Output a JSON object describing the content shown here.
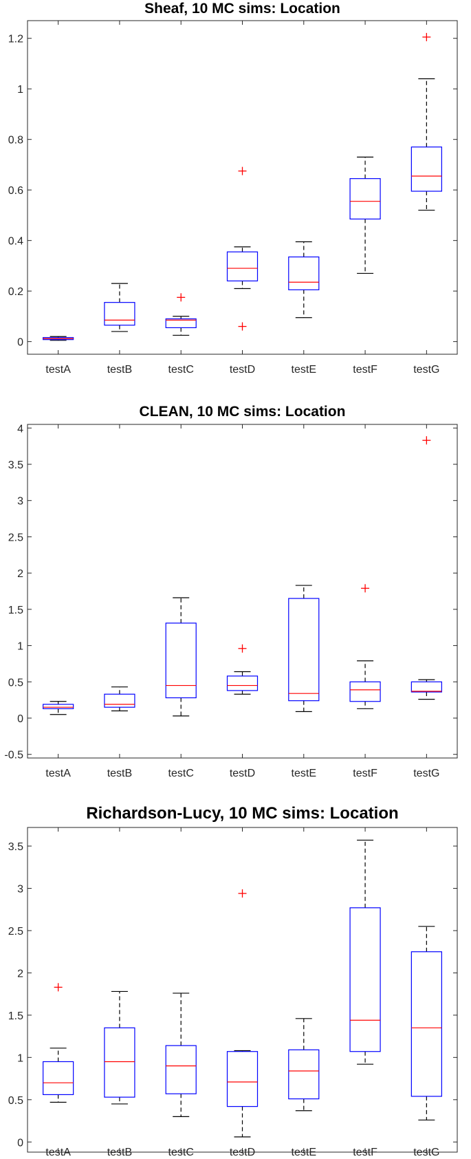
{
  "chart_data": [
    {
      "type": "box",
      "title": "Sheaf, 10 MC sims: Location",
      "categories": [
        "testA",
        "testB",
        "testC",
        "testD",
        "testE",
        "testF",
        "testG"
      ],
      "ylim": [
        -0.05,
        1.27
      ],
      "yticks": [
        0,
        0.2,
        0.4,
        0.6,
        0.8,
        1,
        1.2
      ],
      "ytick_labels": [
        "0",
        "0.2",
        "0.4",
        "0.6",
        "0.8",
        "1",
        "1.2"
      ],
      "boxes": [
        {
          "min": 0.005,
          "q1": 0.008,
          "median": 0.012,
          "q3": 0.016,
          "max": 0.02,
          "outliers": []
        },
        {
          "min": 0.04,
          "q1": 0.065,
          "median": 0.085,
          "q3": 0.155,
          "max": 0.23,
          "outliers": []
        },
        {
          "min": 0.025,
          "q1": 0.055,
          "median": 0.085,
          "q3": 0.09,
          "max": 0.1,
          "outliers": [
            0.175
          ]
        },
        {
          "min": 0.21,
          "q1": 0.24,
          "median": 0.29,
          "q3": 0.355,
          "max": 0.375,
          "outliers": [
            0.675,
            0.06
          ]
        },
        {
          "min": 0.095,
          "q1": 0.205,
          "median": 0.235,
          "q3": 0.335,
          "max": 0.395,
          "outliers": []
        },
        {
          "min": 0.27,
          "q1": 0.485,
          "median": 0.555,
          "q3": 0.645,
          "max": 0.73,
          "outliers": []
        },
        {
          "min": 0.52,
          "q1": 0.595,
          "median": 0.655,
          "q3": 0.77,
          "max": 1.04,
          "outliers": [
            1.205
          ]
        }
      ]
    },
    {
      "type": "box",
      "title": "CLEAN, 10 MC sims: Location",
      "categories": [
        "testA",
        "testB",
        "testC",
        "testD",
        "testE",
        "testF",
        "testG"
      ],
      "ylim": [
        -0.55,
        4.05
      ],
      "yticks": [
        -0.5,
        0,
        0.5,
        1,
        1.5,
        2,
        2.5,
        3,
        3.5,
        4
      ],
      "ytick_labels": [
        "-0.5",
        "0",
        "0.5",
        "1",
        "1.5",
        "2",
        "2.5",
        "3",
        "3.5",
        "4"
      ],
      "boxes": [
        {
          "min": 0.05,
          "q1": 0.13,
          "median": 0.15,
          "q3": 0.19,
          "max": 0.23,
          "outliers": []
        },
        {
          "min": 0.1,
          "q1": 0.15,
          "median": 0.19,
          "q3": 0.33,
          "max": 0.43,
          "outliers": []
        },
        {
          "min": 0.03,
          "q1": 0.28,
          "median": 0.45,
          "q3": 1.31,
          "max": 1.66,
          "outliers": []
        },
        {
          "min": 0.33,
          "q1": 0.38,
          "median": 0.45,
          "q3": 0.58,
          "max": 0.64,
          "outliers": [
            0.96
          ]
        },
        {
          "min": 0.09,
          "q1": 0.24,
          "median": 0.34,
          "q3": 1.65,
          "max": 1.83,
          "outliers": []
        },
        {
          "min": 0.13,
          "q1": 0.23,
          "median": 0.39,
          "q3": 0.5,
          "max": 0.79,
          "outliers": [
            1.79
          ]
        },
        {
          "min": 0.26,
          "q1": 0.36,
          "median": 0.37,
          "q3": 0.5,
          "max": 0.53,
          "outliers": [
            3.83
          ]
        }
      ]
    },
    {
      "type": "box",
      "title": "Richardson-Lucy, 10 MC sims: Location",
      "categories": [
        "testA",
        "testB",
        "testC",
        "testD",
        "testE",
        "testF",
        "testG"
      ],
      "ylim": [
        -0.12,
        3.72
      ],
      "yticks": [
        0,
        0.5,
        1,
        1.5,
        2,
        2.5,
        3,
        3.5
      ],
      "ytick_labels": [
        "0",
        "0.5",
        "1",
        "1.5",
        "2",
        "2.5",
        "3",
        "3.5"
      ],
      "boxes": [
        {
          "min": 0.47,
          "q1": 0.56,
          "median": 0.7,
          "q3": 0.95,
          "max": 1.11,
          "outliers": [
            1.83
          ]
        },
        {
          "min": 0.45,
          "q1": 0.53,
          "median": 0.95,
          "q3": 1.35,
          "max": 1.78,
          "outliers": []
        },
        {
          "min": 0.3,
          "q1": 0.57,
          "median": 0.9,
          "q3": 1.14,
          "max": 1.76,
          "outliers": []
        },
        {
          "min": 0.06,
          "q1": 0.42,
          "median": 0.71,
          "q3": 1.07,
          "max": 1.08,
          "outliers": [
            2.94
          ]
        },
        {
          "min": 0.37,
          "q1": 0.51,
          "median": 0.84,
          "q3": 1.09,
          "max": 1.46,
          "outliers": []
        },
        {
          "min": 0.92,
          "q1": 1.07,
          "median": 1.44,
          "q3": 2.77,
          "max": 3.57,
          "outliers": []
        },
        {
          "min": 0.26,
          "q1": 0.54,
          "median": 1.35,
          "q3": 2.25,
          "max": 2.55,
          "outliers": []
        }
      ]
    }
  ]
}
